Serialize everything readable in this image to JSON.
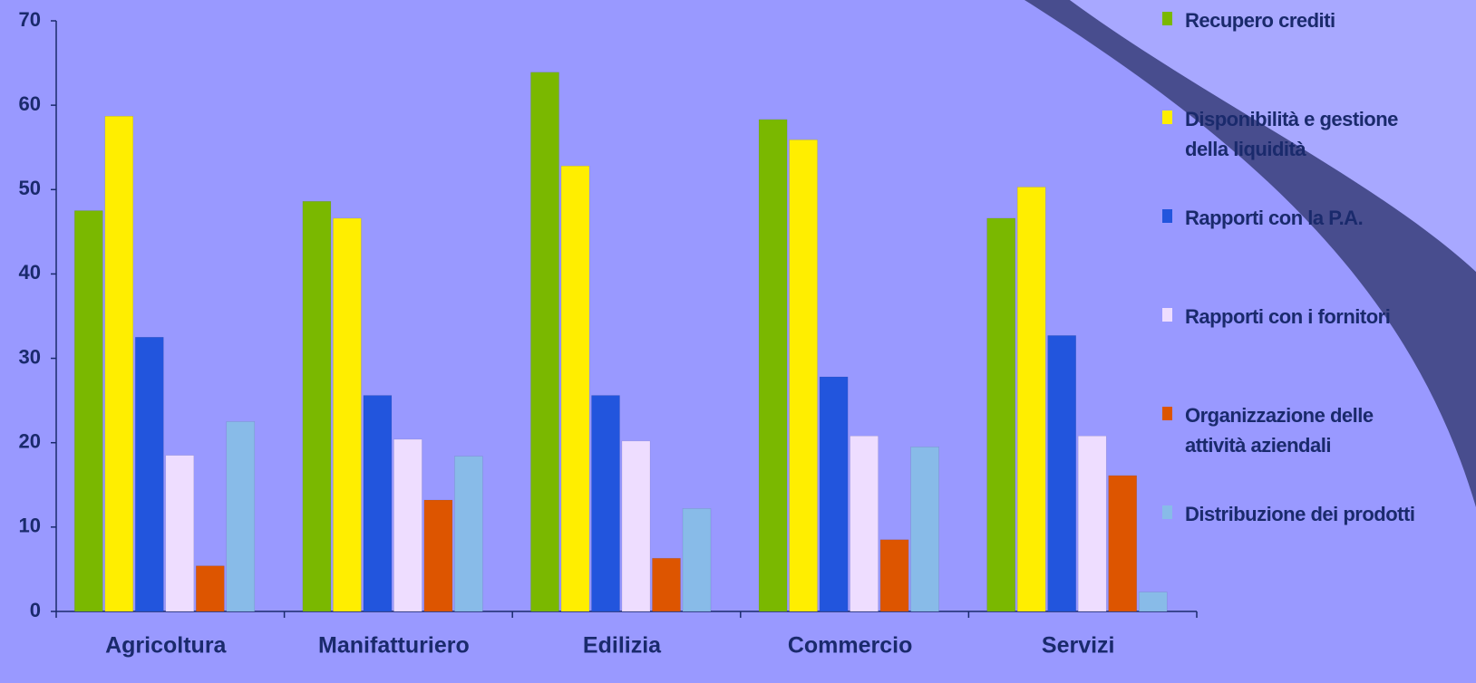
{
  "chart_data": {
    "type": "bar",
    "categories": [
      "Agricoltura",
      "Manifatturiero",
      "Edilizia",
      "Commercio",
      "Servizi"
    ],
    "series": [
      {
        "name": "Recupero crediti",
        "color": "#7ab800",
        "values": [
          47.5,
          48.6,
          63.9,
          58.3,
          46.6
        ]
      },
      {
        "name": "Disponibilità e gestione della liquidità",
        "color": "#ffee00",
        "values": [
          58.7,
          46.6,
          52.8,
          55.9,
          50.3
        ]
      },
      {
        "name": "Rapporti con la P.A.",
        "color": "#2255dd",
        "values": [
          32.5,
          25.6,
          25.6,
          27.8,
          32.7
        ]
      },
      {
        "name": "Rapporti con i fornitori",
        "color": "#eeddff",
        "values": [
          18.5,
          20.4,
          20.2,
          20.8,
          20.8
        ]
      },
      {
        "name": "Organizzazione delle attività aziendali",
        "color": "#dd5500",
        "values": [
          5.4,
          13.2,
          6.3,
          8.5,
          16.1
        ]
      },
      {
        "name": "Distribuzione dei prodotti",
        "color": "#88bbe8",
        "values": [
          22.5,
          18.4,
          12.2,
          19.5,
          2.3
        ]
      }
    ],
    "ylim": [
      0,
      70
    ],
    "yticks": [
      0,
      10,
      20,
      30,
      40,
      50,
      60,
      70
    ],
    "legend": "right"
  }
}
